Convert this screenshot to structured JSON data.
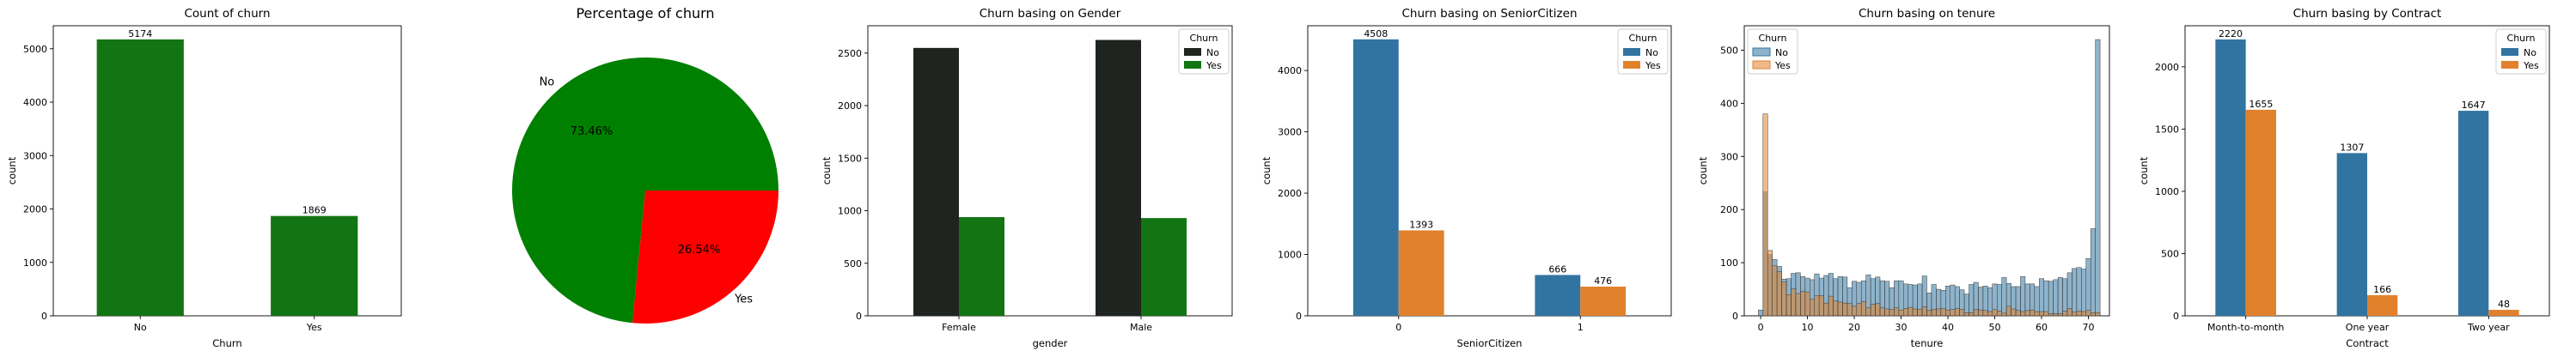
{
  "chart_data": [
    {
      "type": "bar",
      "title": "Count of churn",
      "xlabel": "Churn",
      "ylabel": "count",
      "categories": [
        "No",
        "Yes"
      ],
      "values": [
        5174,
        1869
      ],
      "data_labels": [
        "5174",
        "1869"
      ],
      "yticks": [
        "0",
        "1000",
        "2000",
        "3000",
        "4000",
        "5000"
      ],
      "ylim": [
        0,
        5430
      ],
      "color": "#137413"
    },
    {
      "type": "pie",
      "title": "Percentage of churn",
      "labels": [
        "No",
        "Yes"
      ],
      "values": [
        73.46,
        26.54
      ],
      "pct_labels": [
        "73.46%",
        "26.54%"
      ],
      "colors": [
        "#008000",
        "#ff0000"
      ]
    },
    {
      "type": "bar",
      "title": "Churn basing on Gender",
      "xlabel": "gender",
      "ylabel": "count",
      "categories": [
        "Female",
        "Male"
      ],
      "series": [
        {
          "name": "No",
          "values": [
            2549,
            2625
          ],
          "color": "#1f2420"
        },
        {
          "name": "Yes",
          "values": [
            939,
            930
          ],
          "color": "#137413"
        }
      ],
      "legend_title": "Churn",
      "legend_position": "top-right",
      "yticks": [
        "0",
        "500",
        "1000",
        "1500",
        "2000",
        "2500"
      ],
      "ylim": [
        0,
        2760
      ]
    },
    {
      "type": "bar",
      "title": "Churn basing on SeniorCitizen",
      "xlabel": "SeniorCitizen",
      "ylabel": "count",
      "categories": [
        "0",
        "1"
      ],
      "series": [
        {
          "name": "No",
          "values": [
            4508,
            666
          ],
          "labels": [
            "4508",
            "666"
          ],
          "color": "#3274a1"
        },
        {
          "name": "Yes",
          "values": [
            1393,
            476
          ],
          "labels": [
            "1393",
            "476"
          ],
          "color": "#e1812c"
        }
      ],
      "legend_title": "Churn",
      "legend_position": "top-right",
      "yticks": [
        "0",
        "1000",
        "2000",
        "3000",
        "4000"
      ],
      "ylim": [
        0,
        4730
      ]
    },
    {
      "type": "bar",
      "title": "Churn basing on tenure",
      "xlabel": "tenure",
      "ylabel": "count",
      "x": [
        0,
        1,
        2,
        3,
        4,
        5,
        6,
        7,
        8,
        9,
        10,
        11,
        12,
        13,
        14,
        15,
        16,
        17,
        18,
        19,
        20,
        21,
        22,
        23,
        24,
        25,
        26,
        27,
        28,
        29,
        30,
        31,
        32,
        33,
        34,
        35,
        36,
        37,
        38,
        39,
        40,
        41,
        42,
        43,
        44,
        45,
        46,
        47,
        48,
        49,
        50,
        51,
        52,
        53,
        54,
        55,
        56,
        57,
        58,
        59,
        60,
        61,
        62,
        63,
        64,
        65,
        66,
        67,
        68,
        69,
        70,
        71,
        72
      ],
      "series": [
        {
          "name": "No",
          "color": "#3274a1",
          "values": [
            11,
            233,
            115,
            106,
            93,
            69,
            70,
            80,
            81,
            74,
            71,
            68,
            79,
            71,
            76,
            80,
            70,
            74,
            73,
            53,
            65,
            63,
            66,
            77,
            70,
            73,
            66,
            65,
            53,
            66,
            66,
            60,
            59,
            58,
            60,
            75,
            43,
            59,
            50,
            48,
            56,
            58,
            55,
            49,
            41,
            59,
            63,
            54,
            56,
            53,
            60,
            59,
            72,
            61,
            55,
            55,
            74,
            60,
            60,
            55,
            70,
            66,
            65,
            68,
            72,
            70,
            81,
            89,
            91,
            88,
            108,
            164,
            520
          ]
        },
        {
          "name": "Yes",
          "color": "#e1812c",
          "values": [
            0,
            380,
            123,
            94,
            83,
            64,
            40,
            51,
            42,
            46,
            45,
            31,
            38,
            38,
            24,
            37,
            28,
            26,
            24,
            23,
            18,
            23,
            27,
            15,
            22,
            23,
            15,
            13,
            12,
            15,
            11,
            14,
            16,
            13,
            12,
            17,
            10,
            12,
            13,
            14,
            11,
            12,
            14,
            12,
            6,
            6,
            12,
            11,
            10,
            8,
            12,
            9,
            5,
            18,
            13,
            10,
            8,
            10,
            11,
            8,
            8,
            8,
            4,
            4,
            4,
            9,
            14,
            7,
            9,
            8,
            11,
            6,
            6
          ]
        }
      ],
      "legend_title": "Churn",
      "legend_position": "top-left",
      "xticks": [
        "0",
        "10",
        "20",
        "30",
        "40",
        "50",
        "60",
        "70"
      ],
      "yticks": [
        "0",
        "100",
        "200",
        "300",
        "400",
        "500"
      ],
      "xlim": [
        -3,
        75
      ],
      "ylim": [
        0,
        546
      ]
    },
    {
      "type": "bar",
      "title": "Churn basing by Contract",
      "xlabel": "Contract",
      "ylabel": "count",
      "categories": [
        "Month-to-month",
        "One year",
        "Two year"
      ],
      "series": [
        {
          "name": "No",
          "values": [
            2220,
            1307,
            1647
          ],
          "labels": [
            "2220",
            "1307",
            "1647"
          ],
          "color": "#3274a1"
        },
        {
          "name": "Yes",
          "values": [
            1655,
            166,
            48
          ],
          "labels": [
            "1655",
            "166",
            "48"
          ],
          "color": "#e1812c"
        }
      ],
      "legend_title": "Churn",
      "legend_position": "top-right",
      "yticks": [
        "0",
        "500",
        "1000",
        "1500",
        "2000"
      ],
      "ylim": [
        0,
        2330
      ]
    }
  ]
}
